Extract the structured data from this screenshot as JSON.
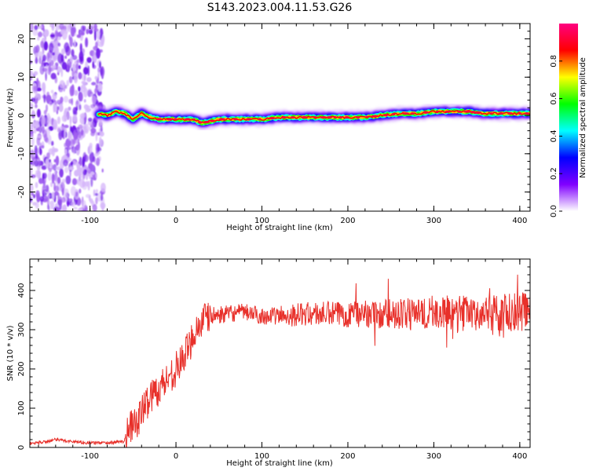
{
  "title": "S143.2023.004.11.53.G26",
  "chart_data": [
    {
      "type": "heatmap",
      "title": "S143.2023.004.11.53.G26",
      "xlabel": "Height of straight line (km)",
      "ylabel": "Frequency (Hz)",
      "xlim": [
        -170,
        412
      ],
      "ylim": [
        -25,
        24
      ],
      "xticks": [
        -100,
        0,
        100,
        200,
        300,
        400
      ],
      "yticks": [
        -20,
        -10,
        0,
        10,
        20
      ],
      "grid": false,
      "colorbar": {
        "label": "Normalized spectral amplitude",
        "range": [
          0,
          1
        ],
        "ticks": [
          0.0,
          0.2,
          0.4,
          0.6,
          0.8
        ],
        "colormap": [
          "#ffffff",
          "#8000ff",
          "#0000ff",
          "#00ffff",
          "#00ff00",
          "#ffff00",
          "#ff0000",
          "#ff0080"
        ]
      },
      "noise_region": {
        "x_range": [
          -170,
          -90
        ],
        "freq_range": [
          -25,
          24
        ],
        "amplitude": 0.15
      },
      "ridge": {
        "x": [
          -90,
          -80,
          -70,
          -60,
          -50,
          -40,
          -30,
          -20,
          -10,
          0,
          10,
          20,
          30,
          40,
          50,
          60,
          80,
          100,
          120,
          140,
          160,
          180,
          200,
          220,
          240,
          260,
          280,
          300,
          320,
          340,
          360,
          380,
          400,
          412
        ],
        "freq": [
          0.5,
          0.0,
          1.0,
          0.5,
          -1.0,
          0.5,
          -0.5,
          -1.0,
          -1.0,
          -1.0,
          -1.0,
          -1.0,
          -2.0,
          -1.5,
          -1.0,
          -1.0,
          -1.0,
          -1.0,
          -0.5,
          -0.5,
          -0.5,
          -0.5,
          -0.5,
          -0.5,
          0.0,
          0.5,
          0.5,
          1.0,
          1.0,
          1.0,
          0.5,
          0.5,
          0.5,
          0.5
        ],
        "peak_amplitude": 0.95
      }
    },
    {
      "type": "line",
      "xlabel": "Height of straight line (km)",
      "ylabel": "SNR (10 * v/v)",
      "xlim": [
        -170,
        412
      ],
      "ylim": [
        0,
        480
      ],
      "xticks": [
        -100,
        0,
        100,
        200,
        300,
        400
      ],
      "yticks": [
        0,
        100,
        200,
        300,
        400
      ],
      "grid": false,
      "color": "#e8302a",
      "series": [
        {
          "x": [
            -170,
            -150,
            -140,
            -120,
            -100,
            -80,
            -60,
            -55,
            -50,
            -40,
            -30,
            -20,
            -10,
            0,
            5,
            10,
            15,
            20,
            30,
            40,
            60,
            80,
            100,
            120,
            150,
            200,
            250,
            300,
            350,
            400,
            412
          ],
          "values": [
            10,
            15,
            20,
            15,
            12,
            12,
            15,
            70,
            45,
            90,
            130,
            150,
            175,
            200,
            215,
            235,
            255,
            290,
            320,
            335,
            340,
            345,
            335,
            335,
            340,
            340,
            340,
            345,
            340,
            345,
            350
          ]
        }
      ]
    }
  ]
}
